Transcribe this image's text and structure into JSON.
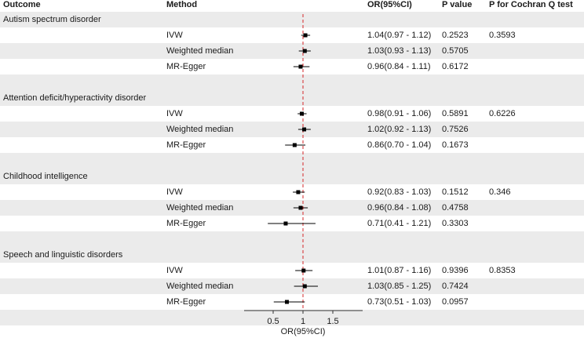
{
  "header": {
    "outcome": "Outcome",
    "method": "Method",
    "or": "OR(95%CI)",
    "pvalue": "P value",
    "cochran": "P for Cochran Q test"
  },
  "chart_data": {
    "type": "forest",
    "reference_line": 1,
    "xlim": [
      0.0,
      2.0
    ],
    "xticks": [
      0.5,
      1,
      1.5
    ],
    "xtick_labels": [
      "0.5",
      "1",
      "1.5"
    ],
    "xlabel": "OR(95%CI)",
    "groups": [
      {
        "outcome": "Autism spectrum disorder",
        "cochran_p": "0.3593",
        "rows": [
          {
            "method": "IVW",
            "or": 1.04,
            "lo": 0.97,
            "hi": 1.12,
            "or_text": "1.04(0.97 - 1.12)",
            "p": "0.2523"
          },
          {
            "method": "Weighted median",
            "or": 1.03,
            "lo": 0.93,
            "hi": 1.13,
            "or_text": "1.03(0.93 - 1.13)",
            "p": "0.5705"
          },
          {
            "method": "MR-Egger",
            "or": 0.96,
            "lo": 0.84,
            "hi": 1.11,
            "or_text": "0.96(0.84 - 1.11)",
            "p": "0.6172"
          }
        ]
      },
      {
        "outcome": "Attention deficit/hyperactivity disorder",
        "cochran_p": "0.6226",
        "rows": [
          {
            "method": "IVW",
            "or": 0.98,
            "lo": 0.91,
            "hi": 1.06,
            "or_text": "0.98(0.91 - 1.06)",
            "p": "0.5891"
          },
          {
            "method": "Weighted median",
            "or": 1.02,
            "lo": 0.92,
            "hi": 1.13,
            "or_text": "1.02(0.92 - 1.13)",
            "p": "0.7526"
          },
          {
            "method": "MR-Egger",
            "or": 0.86,
            "lo": 0.7,
            "hi": 1.04,
            "or_text": "0.86(0.70 - 1.04)",
            "p": "0.1673"
          }
        ]
      },
      {
        "outcome": "Childhood intelligence",
        "cochran_p": "0.346",
        "rows": [
          {
            "method": "IVW",
            "or": 0.92,
            "lo": 0.83,
            "hi": 1.03,
            "or_text": "0.92(0.83 - 1.03)",
            "p": "0.1512"
          },
          {
            "method": "Weighted median",
            "or": 0.96,
            "lo": 0.84,
            "hi": 1.08,
            "or_text": "0.96(0.84 - 1.08)",
            "p": "0.4758"
          },
          {
            "method": "MR-Egger",
            "or": 0.71,
            "lo": 0.41,
            "hi": 1.21,
            "or_text": "0.71(0.41 - 1.21)",
            "p": "0.3303"
          }
        ]
      },
      {
        "outcome": "Speech and linguistic disorders",
        "cochran_p": "0.8353",
        "rows": [
          {
            "method": "IVW",
            "or": 1.01,
            "lo": 0.87,
            "hi": 1.16,
            "or_text": "1.01(0.87 - 1.16)",
            "p": "0.9396"
          },
          {
            "method": "Weighted median",
            "or": 1.03,
            "lo": 0.85,
            "hi": 1.25,
            "or_text": "1.03(0.85 - 1.25)",
            "p": "0.7424"
          },
          {
            "method": "MR-Egger",
            "or": 0.73,
            "lo": 0.51,
            "hi": 1.03,
            "or_text": "0.73(0.51 - 1.03)",
            "p": "0.0957"
          }
        ]
      }
    ]
  },
  "colors": {
    "band": "#ebebeb",
    "text": "#1a1a1a",
    "marker": "#000000",
    "reference_line": "#d62728"
  }
}
